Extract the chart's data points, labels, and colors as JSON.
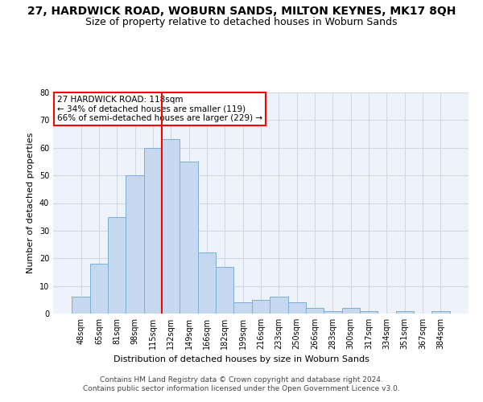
{
  "title_line1": "27, HARDWICK ROAD, WOBURN SANDS, MILTON KEYNES, MK17 8QH",
  "title_line2": "Size of property relative to detached houses in Woburn Sands",
  "xlabel": "Distribution of detached houses by size in Woburn Sands",
  "ylabel": "Number of detached properties",
  "categories": [
    "48sqm",
    "65sqm",
    "81sqm",
    "98sqm",
    "115sqm",
    "132sqm",
    "149sqm",
    "166sqm",
    "182sqm",
    "199sqm",
    "216sqm",
    "233sqm",
    "250sqm",
    "266sqm",
    "283sqm",
    "300sqm",
    "317sqm",
    "334sqm",
    "351sqm",
    "367sqm",
    "384sqm"
  ],
  "values": [
    6,
    18,
    35,
    50,
    60,
    63,
    55,
    22,
    17,
    4,
    5,
    6,
    4,
    2,
    1,
    2,
    1,
    0,
    1,
    0,
    1
  ],
  "bar_color": "#c5d8f0",
  "bar_edge_color": "#7bafd4",
  "grid_color": "#d0d8e8",
  "background_color": "#eef2fa",
  "vline_x_index": 4,
  "vline_color": "red",
  "annotation_box_text": "27 HARDWICK ROAD: 118sqm\n← 34% of detached houses are smaller (119)\n66% of semi-detached houses are larger (229) →",
  "ylim": [
    0,
    80
  ],
  "yticks": [
    0,
    10,
    20,
    30,
    40,
    50,
    60,
    70,
    80
  ],
  "footer_line1": "Contains HM Land Registry data © Crown copyright and database right 2024.",
  "footer_line2": "Contains public sector information licensed under the Open Government Licence v3.0.",
  "title_fontsize": 10,
  "subtitle_fontsize": 9,
  "axis_label_fontsize": 8,
  "tick_fontsize": 7,
  "annotation_fontsize": 7.5,
  "footer_fontsize": 6.5
}
